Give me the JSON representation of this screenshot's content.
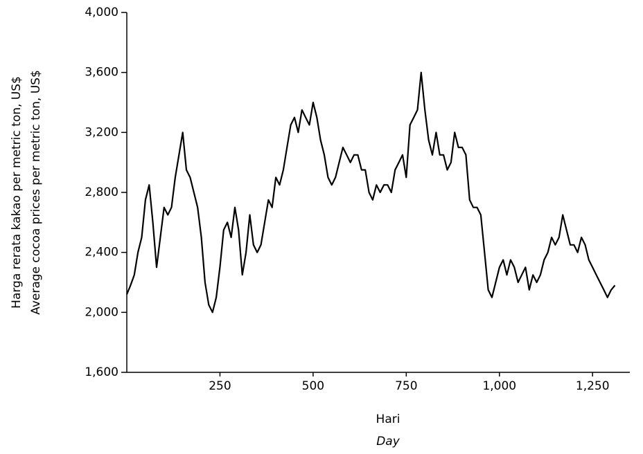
{
  "chart_data": {
    "type": "line",
    "ylabel": [
      "Harga rerata kakao per metric ton, US$",
      "Average cocoa prices per metric ton, US$"
    ],
    "xlabel": "Hari",
    "xlabel_translation": "Day",
    "xlim": [
      0,
      1350
    ],
    "ylim": [
      1600,
      4000
    ],
    "xticks": [
      250,
      500,
      750,
      {
        "value": 1000,
        "label": "1,000"
      },
      {
        "value": 1250,
        "label": "1,250"
      }
    ],
    "yticks": [
      {
        "value": 1600,
        "label": "1,600"
      },
      {
        "value": 2000,
        "label": "2,000"
      },
      {
        "value": 2400,
        "label": "2,400"
      },
      {
        "value": 2800,
        "label": "2,800"
      },
      {
        "value": 3200,
        "label": "3,200"
      },
      {
        "value": 3600,
        "label": "3,600"
      },
      {
        "value": 4000,
        "label": "4,000"
      }
    ],
    "grid": false,
    "series": [
      {
        "color": "#000000",
        "x": [
          0,
          10,
          20,
          30,
          40,
          50,
          60,
          70,
          80,
          90,
          100,
          110,
          120,
          130,
          140,
          150,
          160,
          170,
          180,
          190,
          200,
          210,
          220,
          230,
          240,
          250,
          260,
          270,
          280,
          290,
          300,
          310,
          320,
          330,
          340,
          350,
          360,
          370,
          380,
          390,
          400,
          410,
          420,
          430,
          440,
          450,
          460,
          470,
          480,
          490,
          500,
          510,
          520,
          530,
          540,
          550,
          560,
          570,
          580,
          590,
          600,
          610,
          620,
          630,
          640,
          650,
          660,
          670,
          680,
          690,
          700,
          710,
          720,
          730,
          740,
          750,
          760,
          770,
          780,
          790,
          800,
          810,
          820,
          830,
          840,
          850,
          860,
          870,
          880,
          890,
          900,
          910,
          920,
          930,
          940,
          950,
          960,
          970,
          980,
          990,
          1000,
          1010,
          1020,
          1030,
          1040,
          1050,
          1060,
          1070,
          1080,
          1090,
          1100,
          1110,
          1120,
          1130,
          1140,
          1150,
          1160,
          1170,
          1180,
          1190,
          1200,
          1210,
          1220,
          1230,
          1240,
          1250,
          1260,
          1270,
          1280,
          1290,
          1300,
          1310
        ],
        "values": [
          2120,
          2180,
          2250,
          2400,
          2500,
          2750,
          2850,
          2600,
          2300,
          2500,
          2700,
          2650,
          2700,
          2900,
          3050,
          3200,
          2950,
          2900,
          2800,
          2700,
          2500,
          2200,
          2050,
          2000,
          2100,
          2300,
          2550,
          2600,
          2500,
          2700,
          2550,
          2250,
          2400,
          2650,
          2450,
          2400,
          2450,
          2600,
          2750,
          2700,
          2900,
          2850,
          2950,
          3100,
          3250,
          3300,
          3200,
          3350,
          3300,
          3250,
          3400,
          3300,
          3150,
          3050,
          2900,
          2850,
          2900,
          3000,
          3100,
          3050,
          3000,
          3050,
          3050,
          2950,
          2950,
          2800,
          2750,
          2850,
          2800,
          2850,
          2850,
          2800,
          2950,
          3000,
          3050,
          2900,
          3250,
          3300,
          3350,
          3600,
          3350,
          3150,
          3050,
          3200,
          3050,
          3050,
          2950,
          3000,
          3200,
          3100,
          3100,
          3050,
          2750,
          2700,
          2700,
          2650,
          2400,
          2150,
          2100,
          2200,
          2300,
          2350,
          2250,
          2350,
          2300,
          2200,
          2250,
          2300,
          2150,
          2250,
          2200,
          2250,
          2350,
          2400,
          2500,
          2450,
          2500,
          2650,
          2550,
          2450,
          2450,
          2400,
          2500,
          2450,
          2350,
          2300,
          2250,
          2200,
          2150,
          2100,
          2150,
          2180
        ]
      }
    ]
  }
}
